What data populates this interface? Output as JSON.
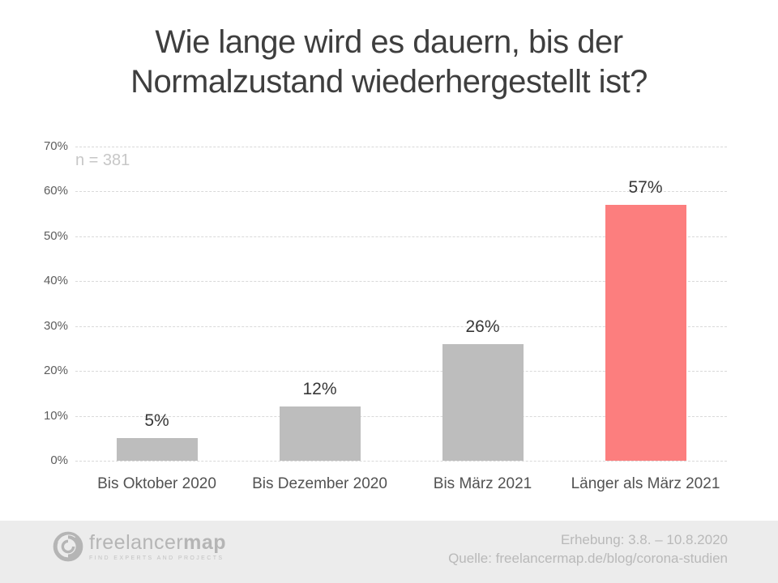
{
  "title": "Wie lange wird es dauern, bis der Normalzustand wiederhergestellt ist?",
  "chart_data": {
    "type": "bar",
    "categories": [
      "Bis Oktober 2020",
      "Bis Dezember 2020",
      "Bis März 2021",
      "Länger als März 2021"
    ],
    "values": [
      5,
      12,
      26,
      57
    ],
    "value_labels": [
      "5%",
      "12%",
      "26%",
      "57%"
    ],
    "annotation": "n = 381",
    "title": "Wie lange wird es dauern, bis der Normalzustand wiederhergestellt ist?",
    "xlabel": "",
    "ylabel": "",
    "ylim": [
      0,
      70
    ],
    "yticks": [
      0,
      10,
      20,
      30,
      40,
      50,
      60,
      70
    ],
    "ytick_labels": [
      "0%",
      "10%",
      "20%",
      "30%",
      "40%",
      "50%",
      "60%",
      "70%"
    ],
    "grid": true,
    "legend": false,
    "bar_colors": [
      "#bdbdbd",
      "#bdbdbd",
      "#bdbdbd",
      "#fc7e7e"
    ],
    "highlight_index": 3
  },
  "colors": {
    "bar_default": "#bdbdbd",
    "bar_highlight": "#fc7e7e",
    "grid": "#d9d9d9",
    "title_text": "#3e3e3e",
    "footer_bg": "#ececec",
    "footer_text": "#b9b9b9"
  },
  "footer": {
    "logo_icon": "freelancermap-swirl-circle",
    "logo_text_light": "freelancer",
    "logo_text_bold": "map",
    "logo_tagline": "Find experts and projects",
    "erhebung_line": "Erhebung: 3.8. – 10.8.2020",
    "quelle_line": "Quelle: freelancermap.de/blog/corona-studien"
  }
}
